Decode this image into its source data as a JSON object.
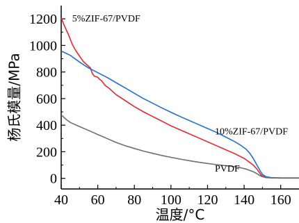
{
  "chart_data": {
    "type": "line",
    "title": "",
    "xlabel": "温度/°C",
    "ylabel": "杨氏模量/MPa",
    "xlim": [
      40,
      170
    ],
    "ylim": [
      -80,
      1300
    ],
    "xticks": [
      "40",
      "60",
      "80",
      "100",
      "120",
      "140",
      "160"
    ],
    "yticks": [
      "0",
      "200",
      "400",
      "600",
      "800",
      "1000",
      "1200"
    ],
    "grid": false,
    "legend": "none",
    "series": [
      {
        "name": "5%ZIF-67/PVDF",
        "color": "#e8262c",
        "points": [
          [
            40,
            1205
          ],
          [
            42,
            1140
          ],
          [
            44,
            1080
          ],
          [
            46,
            1010
          ],
          [
            48,
            960
          ],
          [
            50,
            920
          ],
          [
            52,
            880
          ],
          [
            54,
            855
          ],
          [
            56,
            830
          ],
          [
            57,
            790
          ],
          [
            58,
            770
          ],
          [
            60,
            760
          ],
          [
            61,
            745
          ],
          [
            62,
            735
          ],
          [
            64,
            700
          ],
          [
            66,
            680
          ],
          [
            70,
            630
          ],
          [
            75,
            585
          ],
          [
            80,
            540
          ],
          [
            85,
            500
          ],
          [
            90,
            465
          ],
          [
            95,
            430
          ],
          [
            100,
            395
          ],
          [
            105,
            365
          ],
          [
            110,
            335
          ],
          [
            115,
            305
          ],
          [
            120,
            275
          ],
          [
            125,
            245
          ],
          [
            130,
            215
          ],
          [
            135,
            185
          ],
          [
            140,
            150
          ],
          [
            143,
            120
          ],
          [
            145,
            100
          ],
          [
            147,
            70
          ],
          [
            148,
            50
          ],
          [
            149,
            30
          ],
          [
            150,
            18
          ],
          [
            152,
            8
          ],
          [
            155,
            3
          ],
          [
            160,
            2
          ],
          [
            170,
            2
          ]
        ]
      },
      {
        "name": "10%ZIF-67/PVDF",
        "color": "#1f6fd6",
        "points": [
          [
            40,
            958
          ],
          [
            45,
            925
          ],
          [
            50,
            875
          ],
          [
            55,
            830
          ],
          [
            60,
            795
          ],
          [
            65,
            760
          ],
          [
            70,
            720
          ],
          [
            75,
            680
          ],
          [
            80,
            640
          ],
          [
            85,
            600
          ],
          [
            90,
            565
          ],
          [
            95,
            530
          ],
          [
            100,
            497
          ],
          [
            105,
            465
          ],
          [
            110,
            435
          ],
          [
            115,
            405
          ],
          [
            120,
            375
          ],
          [
            125,
            345
          ],
          [
            130,
            310
          ],
          [
            135,
            275
          ],
          [
            138,
            250
          ],
          [
            141,
            220
          ],
          [
            143,
            190
          ],
          [
            145,
            150
          ],
          [
            147,
            100
          ],
          [
            148,
            75
          ],
          [
            149,
            50
          ],
          [
            150,
            30
          ],
          [
            152,
            12
          ],
          [
            155,
            5
          ],
          [
            160,
            3
          ],
          [
            170,
            3
          ]
        ]
      },
      {
        "name": "PVDF",
        "color": "#6e6e6e",
        "points": [
          [
            40,
            478
          ],
          [
            43,
            440
          ],
          [
            45,
            420
          ],
          [
            50,
            390
          ],
          [
            55,
            360
          ],
          [
            60,
            330
          ],
          [
            65,
            300
          ],
          [
            70,
            270
          ],
          [
            75,
            245
          ],
          [
            80,
            225
          ],
          [
            85,
            205
          ],
          [
            90,
            188
          ],
          [
            95,
            172
          ],
          [
            100,
            158
          ],
          [
            105,
            145
          ],
          [
            110,
            133
          ],
          [
            115,
            122
          ],
          [
            120,
            112
          ],
          [
            125,
            103
          ],
          [
            130,
            95
          ],
          [
            135,
            87
          ],
          [
            138,
            80
          ],
          [
            141,
            70
          ],
          [
            143,
            60
          ],
          [
            145,
            50
          ],
          [
            147,
            35
          ],
          [
            148,
            25
          ],
          [
            150,
            12
          ],
          [
            152,
            5
          ],
          [
            155,
            3
          ],
          [
            160,
            2
          ],
          [
            170,
            2
          ]
        ]
      }
    ]
  }
}
